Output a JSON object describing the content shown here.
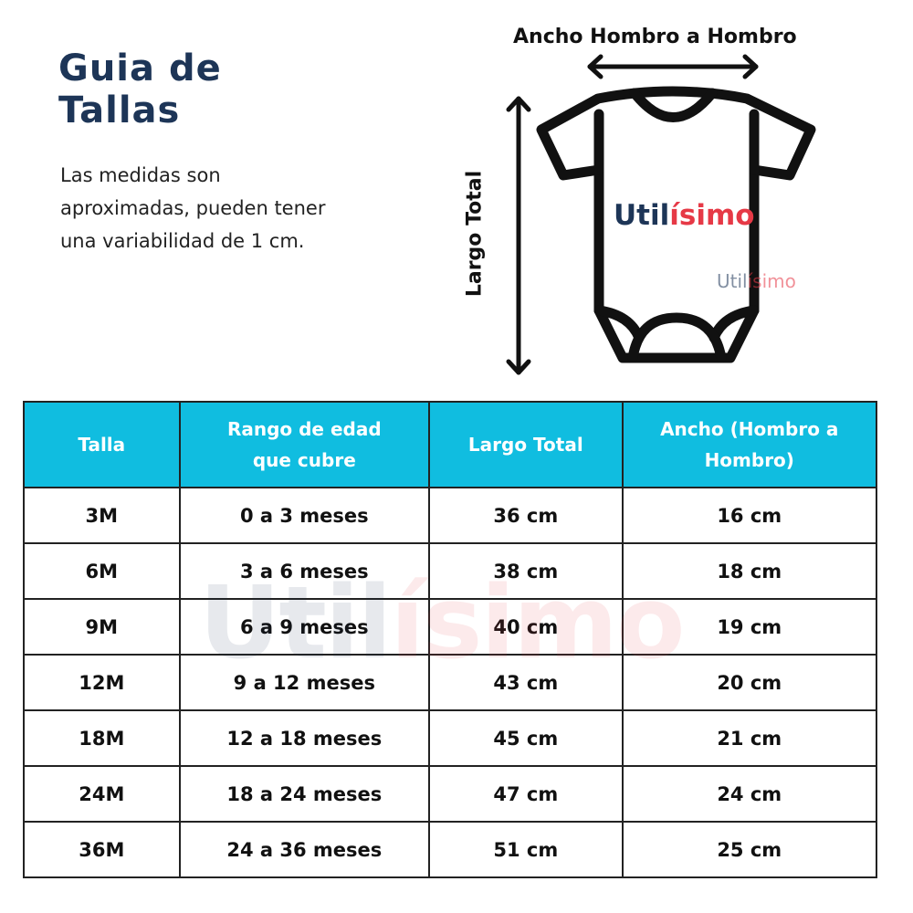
{
  "title": "Guia de Tallas",
  "title_line1": "Guia de",
  "title_line2": "Tallas",
  "description": "Las medidas son aproximadas, pueden tener una variabilidad de 1 cm.",
  "diagram": {
    "width_label": "Ancho Hombro a Hombro",
    "length_label": "Largo Total",
    "logo_part1": "Util",
    "logo_part2": "ísimo"
  },
  "colors": {
    "header": "#10bde0",
    "title": "#1d3557",
    "brand_red": "#e63946"
  },
  "table": {
    "headers": [
      "Talla",
      "Rango de edad que cubre",
      "Largo Total",
      "Ancho (Hombro a Hombro)"
    ],
    "rows": [
      [
        "3M",
        "0 a 3 meses",
        "36 cm",
        "16 cm"
      ],
      [
        "6M",
        "3 a 6 meses",
        "38 cm",
        "18 cm"
      ],
      [
        "9M",
        "6 a 9 meses",
        "40 cm",
        "19 cm"
      ],
      [
        "12M",
        "9 a 12 meses",
        "43 cm",
        "20 cm"
      ],
      [
        "18M",
        "12 a 18 meses",
        "45 cm",
        "21 cm"
      ],
      [
        "24M",
        "18 a 24 meses",
        "47 cm",
        "24 cm"
      ],
      [
        "36M",
        "24 a 36 meses",
        "51 cm",
        "25 cm"
      ]
    ]
  }
}
